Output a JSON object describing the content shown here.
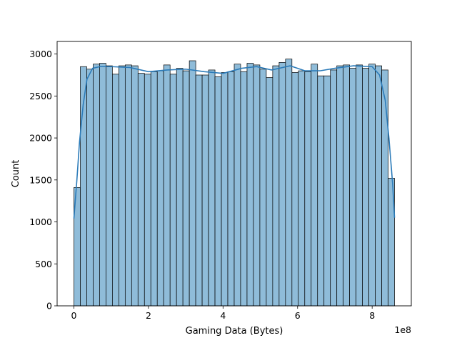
{
  "chart_data": {
    "type": "bar",
    "subtype": "histogram-with-kde",
    "xlabel": "Gaming Data (Bytes)",
    "ylabel": "Count",
    "x_offset_text": "1e8",
    "xlim": [
      -0.45,
      9.05
    ],
    "ylim": [
      0,
      3150
    ],
    "x_scale_factor": 100000000,
    "xticks": [
      0,
      2,
      4,
      6,
      8
    ],
    "xtick_labels": [
      "0",
      "2",
      "4",
      "6",
      "8"
    ],
    "yticks": [
      0,
      500,
      1000,
      1500,
      2000,
      2500,
      3000
    ],
    "ytick_labels": [
      "0",
      "500",
      "1000",
      "1500",
      "2000",
      "2500",
      "3000"
    ],
    "bin_start": 0.0,
    "bin_width": 0.172,
    "bar_color": "#8fbcd9",
    "bar_edge_color": "#000000",
    "kde_color": "#2b7bb9",
    "counts": [
      1410,
      2850,
      2820,
      2880,
      2890,
      2860,
      2760,
      2860,
      2870,
      2860,
      2770,
      2760,
      2790,
      2800,
      2870,
      2760,
      2830,
      2800,
      2920,
      2750,
      2750,
      2810,
      2730,
      2780,
      2790,
      2880,
      2790,
      2890,
      2870,
      2820,
      2720,
      2860,
      2900,
      2940,
      2780,
      2800,
      2790,
      2880,
      2740,
      2740,
      2810,
      2860,
      2870,
      2830,
      2870,
      2830,
      2880,
      2860,
      2810,
      1520
    ],
    "kde": {
      "x": [
        0.0,
        0.08,
        0.15,
        0.25,
        0.35,
        0.5,
        0.7,
        1.0,
        1.5,
        2.0,
        2.5,
        3.0,
        3.5,
        4.0,
        4.5,
        4.9,
        5.3,
        5.8,
        6.2,
        6.6,
        7.0,
        7.5,
        8.0,
        8.2,
        8.35,
        8.45,
        8.55,
        8.6
      ],
      "y": [
        1040,
        1500,
        1950,
        2400,
        2700,
        2830,
        2850,
        2850,
        2840,
        2790,
        2810,
        2820,
        2790,
        2770,
        2830,
        2850,
        2810,
        2860,
        2800,
        2800,
        2830,
        2860,
        2850,
        2750,
        2450,
        2000,
        1450,
        1050
      ]
    }
  }
}
